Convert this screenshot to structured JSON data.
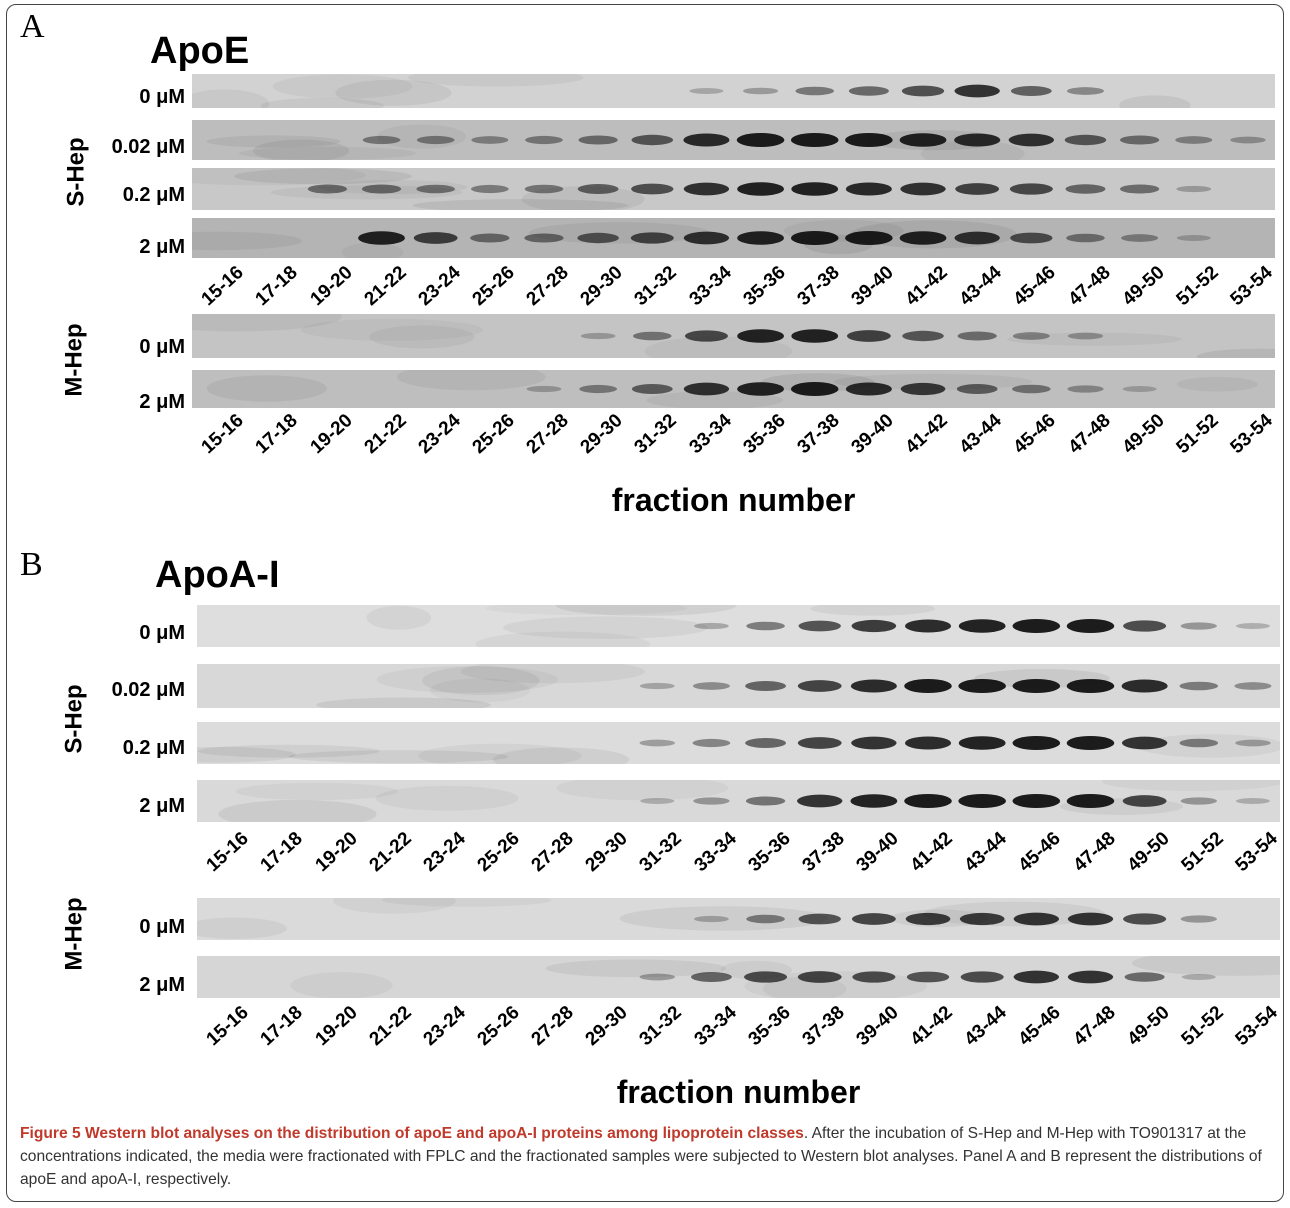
{
  "fractions": [
    "15-16",
    "17-18",
    "19-20",
    "21-22",
    "23-24",
    "25-26",
    "27-28",
    "29-30",
    "31-32",
    "33-34",
    "35-36",
    "37-38",
    "39-40",
    "41-42",
    "43-44",
    "45-46",
    "47-48",
    "49-50",
    "51-52",
    "53-54"
  ],
  "xlabel": "fraction number",
  "panelA": {
    "letter": "A",
    "title": "ApoE",
    "s_hep": {
      "label": "S-Hep",
      "lanes": [
        {
          "conc": "0 μM",
          "intensity": [
            0,
            0,
            0,
            0,
            0,
            0,
            0,
            0,
            0,
            0.1,
            0.18,
            0.4,
            0.5,
            0.65,
            0.85,
            0.55,
            0.3,
            0,
            0,
            0
          ]
        },
        {
          "conc": "0.02 μM",
          "intensity": [
            0,
            0,
            0,
            0.35,
            0.35,
            0.3,
            0.35,
            0.45,
            0.6,
            0.9,
            1.0,
            1.0,
            1.0,
            0.95,
            0.9,
            0.85,
            0.6,
            0.45,
            0.3,
            0.2
          ]
        },
        {
          "conc": "0.2 μM",
          "intensity": [
            0,
            0,
            0.45,
            0.45,
            0.4,
            0.35,
            0.4,
            0.55,
            0.65,
            0.85,
            0.95,
            0.95,
            0.9,
            0.85,
            0.75,
            0.7,
            0.5,
            0.45,
            0.15,
            0
          ]
        },
        {
          "conc": "2 μM",
          "intensity": [
            0,
            0,
            0,
            0.95,
            0.75,
            0.45,
            0.45,
            0.6,
            0.7,
            0.85,
            0.95,
            1.0,
            1.0,
            0.95,
            0.85,
            0.65,
            0.4,
            0.3,
            0.1,
            0
          ]
        }
      ]
    },
    "m_hep": {
      "label": "M-Hep",
      "lanes": [
        {
          "conc": "0 μM",
          "intensity": [
            0,
            0,
            0,
            0,
            0,
            0,
            0,
            0.15,
            0.4,
            0.7,
            0.95,
            0.95,
            0.75,
            0.6,
            0.45,
            0.3,
            0.2,
            0,
            0,
            0
          ]
        },
        {
          "conc": "2 μM",
          "intensity": [
            0,
            0,
            0,
            0,
            0,
            0,
            0.15,
            0.35,
            0.55,
            0.85,
            0.95,
            1.0,
            0.9,
            0.8,
            0.55,
            0.4,
            0.25,
            0.1,
            0,
            0
          ]
        }
      ]
    }
  },
  "panelB": {
    "letter": "B",
    "title": "ApoA-I",
    "s_hep": {
      "label": "S-Hep",
      "lanes": [
        {
          "conc": "0 μM",
          "intensity": [
            0,
            0,
            0,
            0,
            0,
            0,
            0,
            0,
            0,
            0.15,
            0.4,
            0.65,
            0.8,
            0.9,
            0.95,
            1.0,
            1.0,
            0.7,
            0.25,
            0.1
          ]
        },
        {
          "conc": "0.02 μM",
          "intensity": [
            0,
            0,
            0,
            0,
            0,
            0,
            0,
            0,
            0.15,
            0.3,
            0.55,
            0.75,
            0.9,
            1.0,
            1.0,
            1.0,
            1.0,
            0.9,
            0.4,
            0.3
          ]
        },
        {
          "conc": "0.2 μM",
          "intensity": [
            0,
            0,
            0,
            0,
            0,
            0,
            0,
            0,
            0.2,
            0.35,
            0.55,
            0.75,
            0.85,
            0.9,
            0.95,
            1.0,
            1.0,
            0.85,
            0.4,
            0.2
          ]
        },
        {
          "conc": "2 μM",
          "intensity": [
            0,
            0,
            0,
            0,
            0,
            0,
            0,
            0,
            0.1,
            0.25,
            0.45,
            0.85,
            0.95,
            1.0,
            1.0,
            1.0,
            1.0,
            0.75,
            0.25,
            0.1
          ]
        }
      ]
    },
    "m_hep": {
      "label": "M-Hep",
      "lanes": [
        {
          "conc": "0 μM",
          "intensity": [
            0,
            0,
            0,
            0,
            0,
            0,
            0,
            0,
            0,
            0.15,
            0.4,
            0.65,
            0.75,
            0.8,
            0.8,
            0.85,
            0.85,
            0.7,
            0.25,
            0
          ]
        },
        {
          "conc": "2 μM",
          "intensity": [
            0,
            0,
            0,
            0,
            0,
            0,
            0,
            0,
            0.2,
            0.55,
            0.7,
            0.75,
            0.7,
            0.65,
            0.7,
            0.85,
            0.85,
            0.5,
            0.1,
            0
          ]
        }
      ]
    }
  },
  "caption": {
    "bold": "Figure 5 Western blot analyses on the distribution of apoE and apoA-I proteins among lipoprotein classes",
    "text": ". After the incubation of S-Hep and M-Hep with TO901317 at the concentrations indicated, the media were fractionated with FPLC and the fractionated samples were subjected to Western blot analyses. Panel A and B represent the distributions of apoE and apoA-I, respectively."
  }
}
